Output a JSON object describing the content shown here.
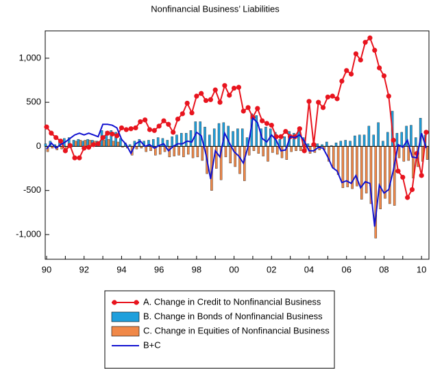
{
  "chart_data": {
    "type": "combo",
    "title": "Nonfinancial Business’ Liabilities",
    "categories": [
      "90",
      null,
      null,
      null,
      null,
      null,
      null,
      null,
      "92",
      null,
      null,
      null,
      null,
      null,
      null,
      null,
      "94",
      null,
      null,
      null,
      null,
      null,
      null,
      null,
      "96",
      null,
      null,
      null,
      null,
      null,
      null,
      null,
      "98",
      null,
      null,
      null,
      null,
      null,
      null,
      null,
      "00",
      null,
      null,
      null,
      null,
      null,
      null,
      null,
      "02",
      null,
      null,
      null,
      null,
      null,
      null,
      null,
      "04",
      null,
      null,
      null,
      null,
      null,
      null,
      null,
      "06",
      null,
      null,
      null,
      null,
      null,
      null,
      null,
      "08",
      null,
      null,
      null,
      null,
      null,
      null,
      null,
      "10",
      null
    ],
    "series": [
      {
        "name": "A. Change in Credit to Nonfinancial Business",
        "kind": "line-marker",
        "color": "#e8141e",
        "values": [
          220,
          150,
          100,
          60,
          -50,
          10,
          -130,
          -130,
          -20,
          -10,
          20,
          30,
          100,
          150,
          140,
          120,
          210,
          190,
          200,
          210,
          280,
          300,
          190,
          180,
          230,
          290,
          250,
          160,
          310,
          370,
          490,
          380,
          570,
          600,
          520,
          530,
          640,
          500,
          690,
          580,
          660,
          670,
          400,
          440,
          330,
          430,
          290,
          260,
          240,
          110,
          110,
          170,
          110,
          110,
          200,
          -50,
          510,
          20,
          500,
          440,
          560,
          570,
          540,
          740,
          860,
          820,
          1050,
          980,
          1180,
          1230,
          1090,
          890,
          800,
          570,
          70,
          -280,
          -350,
          -580,
          -490,
          -80,
          -330,
          160
        ]
      },
      {
        "name": "B. Change in Bonds of Nonfinancial Business",
        "kind": "bar",
        "color": "#1e9fdc",
        "values": [
          30,
          60,
          20,
          50,
          90,
          100,
          70,
          80,
          60,
          80,
          70,
          60,
          180,
          170,
          180,
          160,
          90,
          40,
          20,
          60,
          80,
          60,
          70,
          80,
          100,
          90,
          70,
          110,
          130,
          150,
          150,
          180,
          280,
          280,
          220,
          130,
          200,
          260,
          270,
          230,
          170,
          200,
          200,
          100,
          370,
          350,
          200,
          220,
          200,
          160,
          80,
          110,
          170,
          150,
          180,
          100,
          30,
          20,
          30,
          20,
          50,
          10,
          40,
          60,
          70,
          60,
          120,
          130,
          130,
          230,
          130,
          270,
          60,
          160,
          400,
          150,
          160,
          230,
          240,
          100,
          320,
          130
        ]
      },
      {
        "name": "C. Change in Equities of Nonfinancial Business",
        "kind": "bar",
        "color": "#f08848",
        "values": [
          -60,
          -20,
          -40,
          -30,
          -40,
          -10,
          60,
          70,
          70,
          70,
          60,
          50,
          70,
          80,
          60,
          50,
          -10,
          -20,
          -100,
          -30,
          -20,
          -60,
          -50,
          -100,
          -90,
          -60,
          -120,
          -110,
          -100,
          -120,
          -90,
          -130,
          -120,
          -160,
          -310,
          -500,
          -250,
          -380,
          -120,
          -190,
          -230,
          -310,
          -390,
          -100,
          -50,
          -80,
          -110,
          -170,
          -70,
          -90,
          -130,
          -150,
          -60,
          -50,
          -50,
          -40,
          -80,
          -70,
          -40,
          -40,
          -170,
          -250,
          -320,
          -470,
          -460,
          -480,
          -450,
          -600,
          -530,
          -650,
          -1040,
          -710,
          -590,
          -650,
          -670,
          -130,
          -170,
          -160,
          -360,
          -230,
          -170,
          -150
        ]
      },
      {
        "name": "B+C",
        "kind": "line",
        "color": "#1010d0",
        "values": [
          -30,
          40,
          -20,
          20,
          50,
          90,
          130,
          150,
          130,
          150,
          130,
          110,
          250,
          250,
          240,
          210,
          80,
          20,
          -80,
          30,
          60,
          0,
          20,
          -20,
          10,
          30,
          -50,
          0,
          30,
          30,
          60,
          50,
          160,
          120,
          -90,
          -370,
          -50,
          -120,
          150,
          40,
          -60,
          -110,
          -190,
          0,
          320,
          270,
          90,
          50,
          130,
          70,
          -50,
          -40,
          110,
          100,
          130,
          60,
          -50,
          -50,
          -10,
          -20,
          -120,
          -240,
          -280,
          -410,
          -390,
          -420,
          -330,
          -470,
          -400,
          -420,
          -910,
          -440,
          -530,
          -490,
          -270,
          20,
          -10,
          70,
          -120,
          -130,
          150,
          -20
        ]
      }
    ],
    "ylim": [
      -1280,
      1310
    ],
    "yticks": [
      {
        "value": -1000,
        "label": "-1,000"
      },
      -500,
      0,
      500,
      {
        "value": 1000,
        "label": "1,000"
      }
    ]
  }
}
